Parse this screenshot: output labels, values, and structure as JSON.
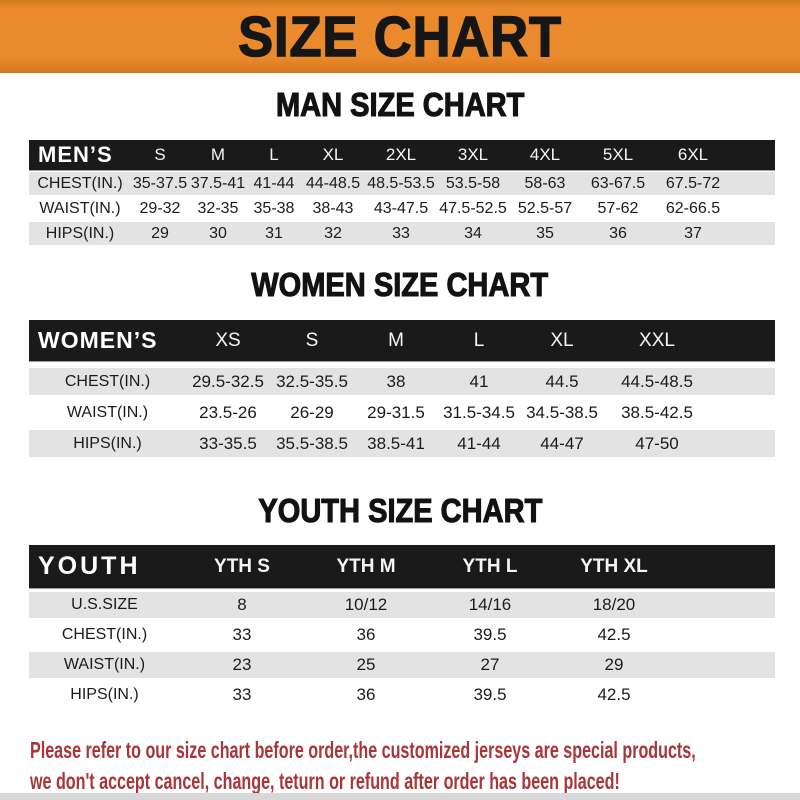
{
  "banner": {
    "title": "SIZE CHART"
  },
  "sections": [
    {
      "id": "men",
      "heading": "MAN SIZE CHART",
      "table": {
        "header_label": "MEN’S",
        "columns": [
          "S",
          "M",
          "L",
          "XL",
          "2XL",
          "3XL",
          "4XL",
          "5XL",
          "6XL"
        ],
        "rows": [
          {
            "label": "CHEST(IN.)",
            "values": [
              "35-37.5",
              "37.5-41",
              "41-44",
              "44-48.5",
              "48.5-53.5",
              "53.5-58",
              "58-63",
              "63-67.5",
              "67.5-72"
            ]
          },
          {
            "label": "WAIST(IN.)",
            "values": [
              "29-32",
              "32-35",
              "35-38",
              "38-43",
              "43-47.5",
              "47.5-52.5",
              "52.5-57",
              "57-62",
              "62-66.5"
            ]
          },
          {
            "label": "HIPS(IN.)",
            "values": [
              "29",
              "30",
              "31",
              "32",
              "33",
              "34",
              "35",
              "36",
              "37"
            ]
          }
        ]
      }
    },
    {
      "id": "women",
      "heading": "WOMEN SIZE CHART",
      "table": {
        "header_label": "WOMEN’S",
        "columns": [
          "XS",
          "S",
          "M",
          "L",
          "XL",
          "XXL"
        ],
        "rows": [
          {
            "label": "CHEST(IN.)",
            "values": [
              "29.5-32.5",
              "32.5-35.5",
              "38",
              "41",
              "44.5",
              "44.5-48.5"
            ]
          },
          {
            "label": "WAIST(IN.)",
            "values": [
              "23.5-26",
              "26-29",
              "29-31.5",
              "31.5-34.5",
              "34.5-38.5",
              "38.5-42.5"
            ]
          },
          {
            "label": "HIPS(IN.)",
            "values": [
              "33-35.5",
              "35.5-38.5",
              "38.5-41",
              "41-44",
              "44-47",
              "47-50"
            ]
          }
        ]
      }
    },
    {
      "id": "youth",
      "heading": "YOUTH SIZE CHART",
      "table": {
        "header_label": "YOUTH",
        "columns": [
          "YTH S",
          "YTH M",
          "YTH L",
          "YTH XL"
        ],
        "rows": [
          {
            "label": "U.S.SIZE",
            "values": [
              "8",
              "10/12",
              "14/16",
              "18/20"
            ]
          },
          {
            "label": "CHEST(IN.)",
            "values": [
              "33",
              "36",
              "39.5",
              "42.5"
            ]
          },
          {
            "label": "WAIST(IN.)",
            "values": [
              "23",
              "25",
              "27",
              "29"
            ]
          },
          {
            "label": "HIPS(IN.)",
            "values": [
              "33",
              "36",
              "39.5",
              "42.5"
            ]
          }
        ]
      }
    }
  ],
  "footer": {
    "line1": "Please refer to our size chart before order,the customized jerseys are special products,",
    "line2": "we don't accept cancel, change, teturn or refund after order has been placed!"
  },
  "colors": {
    "banner_orange": "#EA8A2C",
    "bar_black": "#1A1A1A",
    "row_gray": "#E3E3E3",
    "footer_red": "#A93538"
  }
}
